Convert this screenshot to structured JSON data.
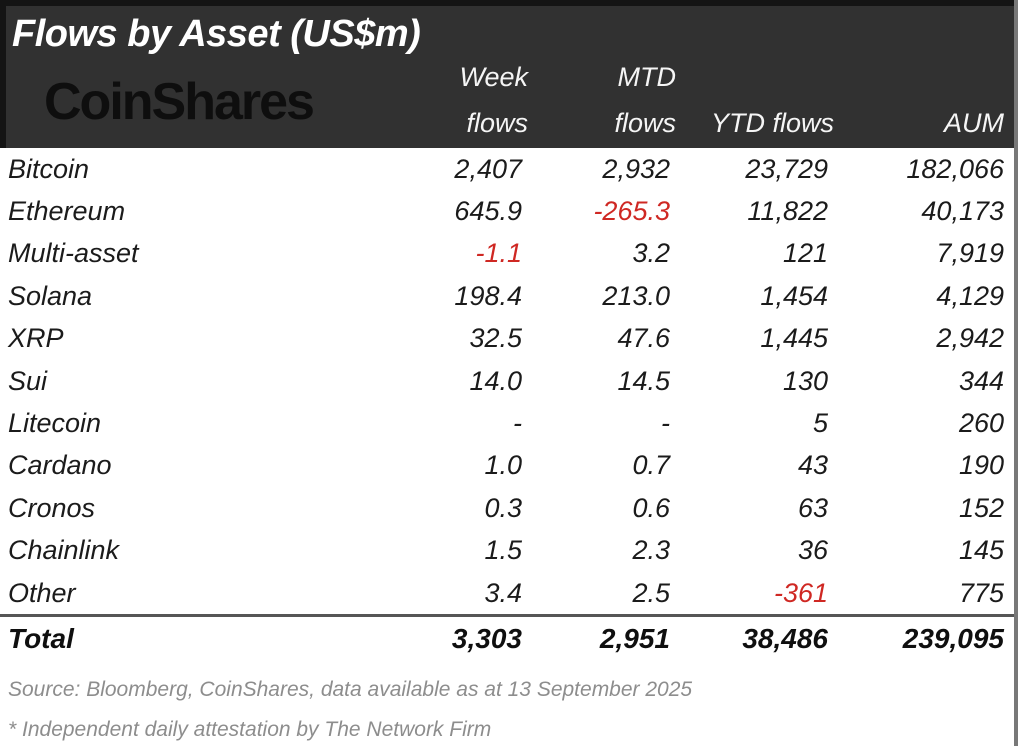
{
  "colors": {
    "header_bg": "#313131",
    "header_text": "#ffffff",
    "brand_text": "#0e0e0e",
    "body_text": "#1b1b1b",
    "negative_text": "#cf2823",
    "footer_text": "#8d8d8d"
  },
  "header": {
    "title": "Flows by Asset (US$m)",
    "brand": "CoinShares",
    "columns": [
      {
        "line1": "Week",
        "line2": "flows"
      },
      {
        "line1": "MTD",
        "line2": "flows"
      },
      {
        "line1": "",
        "line2": "YTD flows"
      },
      {
        "line1": "",
        "line2": "AUM"
      }
    ]
  },
  "rows": [
    {
      "asset": "Bitcoin",
      "values": [
        "2,407",
        "2,932",
        "23,729",
        "182,066"
      ]
    },
    {
      "asset": "Ethereum",
      "values": [
        "645.9",
        "-265.3",
        "11,822",
        "40,173"
      ]
    },
    {
      "asset": "Multi-asset",
      "values": [
        "-1.1",
        "3.2",
        "121",
        "7,919"
      ]
    },
    {
      "asset": "Solana",
      "values": [
        "198.4",
        "213.0",
        "1,454",
        "4,129"
      ]
    },
    {
      "asset": "XRP",
      "values": [
        "32.5",
        "47.6",
        "1,445",
        "2,942"
      ]
    },
    {
      "asset": "Sui",
      "values": [
        "14.0",
        "14.5",
        "130",
        "344"
      ]
    },
    {
      "asset": "Litecoin",
      "values": [
        "-",
        "-",
        "5",
        "260"
      ]
    },
    {
      "asset": "Cardano",
      "values": [
        "1.0",
        "0.7",
        "43",
        "190"
      ]
    },
    {
      "asset": "Cronos",
      "values": [
        "0.3",
        "0.6",
        "63",
        "152"
      ]
    },
    {
      "asset": "Chainlink",
      "values": [
        "1.5",
        "2.3",
        "36",
        "145"
      ]
    },
    {
      "asset": "Other",
      "values": [
        "3.4",
        "2.5",
        "-361",
        "775"
      ]
    }
  ],
  "total": {
    "label": "Total",
    "values": [
      "3,303",
      "2,951",
      "38,486",
      "239,095"
    ]
  },
  "footer": {
    "source": "Source: Bloomberg, CoinShares, data available as at 13 September 2025",
    "attestation": "* Independent daily attestation by The Network Firm"
  },
  "chart_data": {
    "type": "table",
    "title": "Flows by Asset (US$m)",
    "columns": [
      "Week flows",
      "MTD flows",
      "YTD flows",
      "AUM"
    ],
    "rows": [
      {
        "asset": "Bitcoin",
        "week_flows": 2407,
        "mtd_flows": 2932,
        "ytd_flows": 23729,
        "aum": 182066
      },
      {
        "asset": "Ethereum",
        "week_flows": 645.9,
        "mtd_flows": -265.3,
        "ytd_flows": 11822,
        "aum": 40173
      },
      {
        "asset": "Multi-asset",
        "week_flows": -1.1,
        "mtd_flows": 3.2,
        "ytd_flows": 121,
        "aum": 7919
      },
      {
        "asset": "Solana",
        "week_flows": 198.4,
        "mtd_flows": 213.0,
        "ytd_flows": 1454,
        "aum": 4129
      },
      {
        "asset": "XRP",
        "week_flows": 32.5,
        "mtd_flows": 47.6,
        "ytd_flows": 1445,
        "aum": 2942
      },
      {
        "asset": "Sui",
        "week_flows": 14.0,
        "mtd_flows": 14.5,
        "ytd_flows": 130,
        "aum": 344
      },
      {
        "asset": "Litecoin",
        "week_flows": null,
        "mtd_flows": null,
        "ytd_flows": 5,
        "aum": 260
      },
      {
        "asset": "Cardano",
        "week_flows": 1.0,
        "mtd_flows": 0.7,
        "ytd_flows": 43,
        "aum": 190
      },
      {
        "asset": "Cronos",
        "week_flows": 0.3,
        "mtd_flows": 0.6,
        "ytd_flows": 63,
        "aum": 152
      },
      {
        "asset": "Chainlink",
        "week_flows": 1.5,
        "mtd_flows": 2.3,
        "ytd_flows": 36,
        "aum": 145
      },
      {
        "asset": "Other",
        "week_flows": 3.4,
        "mtd_flows": 2.5,
        "ytd_flows": -361,
        "aum": 775
      }
    ],
    "total": {
      "week_flows": 3303,
      "mtd_flows": 2951,
      "ytd_flows": 38486,
      "aum": 239095
    },
    "notes": "Negative values rendered in red; '-' indicates no data"
  }
}
